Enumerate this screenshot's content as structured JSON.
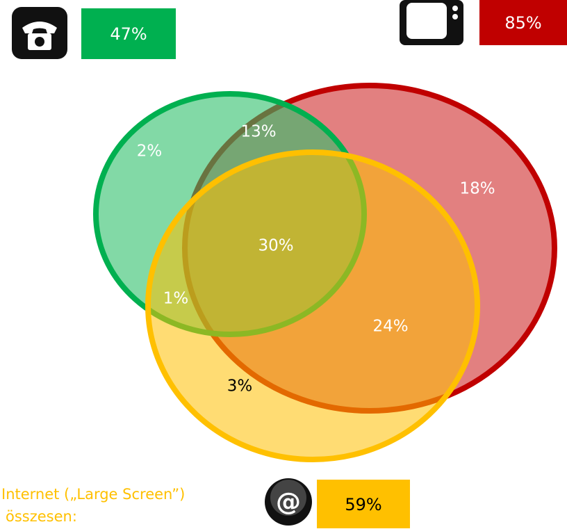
{
  "legend": {
    "phone": {
      "value": "47%"
    },
    "tv": {
      "value": "85%"
    },
    "internet": {
      "icon": "@",
      "label_line1": "Internet („Large Screen”)",
      "label_line2": "összesen:",
      "value": "59%"
    }
  },
  "regions": {
    "phone_only": "2%",
    "phone_tv": "13%",
    "tv_only": "18%",
    "all_three": "30%",
    "phone_internet": "1%",
    "tv_internet": "24%",
    "internet_only": "3%"
  }
}
